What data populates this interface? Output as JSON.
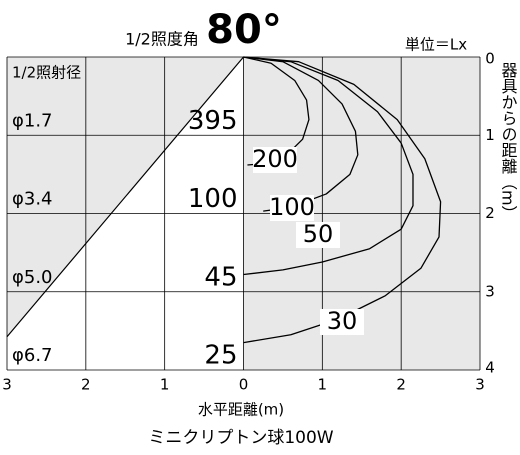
{
  "chart_data": {
    "type": "isolux",
    "title": "ミニクリプトン球100W",
    "angle_label": "1/2照度角",
    "beam_angle": {
      "value": 80,
      "label": "80°"
    },
    "unit_label": "単位＝Lx",
    "diameter_label": "1/2照射径",
    "xlabel": "水平距離(m)",
    "ylabel": "器具からの距離（m）",
    "xlim": [
      -3,
      3
    ],
    "xticks": [
      {
        "value": -3,
        "label": "3"
      },
      {
        "value": -2,
        "label": "2"
      },
      {
        "value": -1,
        "label": "1"
      },
      0,
      1,
      2,
      3
    ],
    "ylim": [
      0,
      4
    ],
    "yticks": [
      0,
      1,
      2,
      3,
      4
    ],
    "rows": {
      "depth": [
        1,
        2,
        3,
        4
      ],
      "diameter": [
        1.7,
        3.4,
        5.0,
        6.7
      ],
      "diameter_labels": [
        "φ1.7",
        "φ3.4",
        "φ5.0",
        "φ6.7"
      ],
      "illuminance": [
        395,
        100,
        45,
        25
      ]
    },
    "series": [
      {
        "value": 200,
        "x": [
          0,
          0.35,
          0.65,
          0.8,
          0.83,
          0.75,
          0.55,
          0.3,
          0.05
        ],
        "y": [
          0,
          0.08,
          0.3,
          0.55,
          0.8,
          1.05,
          1.25,
          1.36,
          1.38
        ]
      },
      {
        "value": 100,
        "x": [
          0,
          0.5,
          0.95,
          1.25,
          1.42,
          1.45,
          1.35,
          1.05,
          0.6,
          0.25
        ],
        "y": [
          0,
          0.06,
          0.3,
          0.6,
          0.95,
          1.25,
          1.5,
          1.75,
          1.92,
          1.97
        ]
      },
      {
        "value": 50,
        "x": [
          0,
          0.6,
          1.2,
          1.7,
          2.0,
          2.15,
          2.15,
          2.0,
          1.6,
          1.0,
          0.5,
          0
        ],
        "y": [
          0,
          0.06,
          0.3,
          0.7,
          1.1,
          1.5,
          1.9,
          2.2,
          2.45,
          2.62,
          2.72,
          2.78
        ]
      },
      {
        "value": 30,
        "x": [
          0,
          0.7,
          1.4,
          1.95,
          2.3,
          2.5,
          2.48,
          2.25,
          1.8,
          1.2,
          0.6,
          0
        ],
        "y": [
          0,
          0.06,
          0.35,
          0.8,
          1.3,
          1.85,
          2.3,
          2.7,
          3.05,
          3.35,
          3.55,
          3.65
        ]
      }
    ]
  }
}
